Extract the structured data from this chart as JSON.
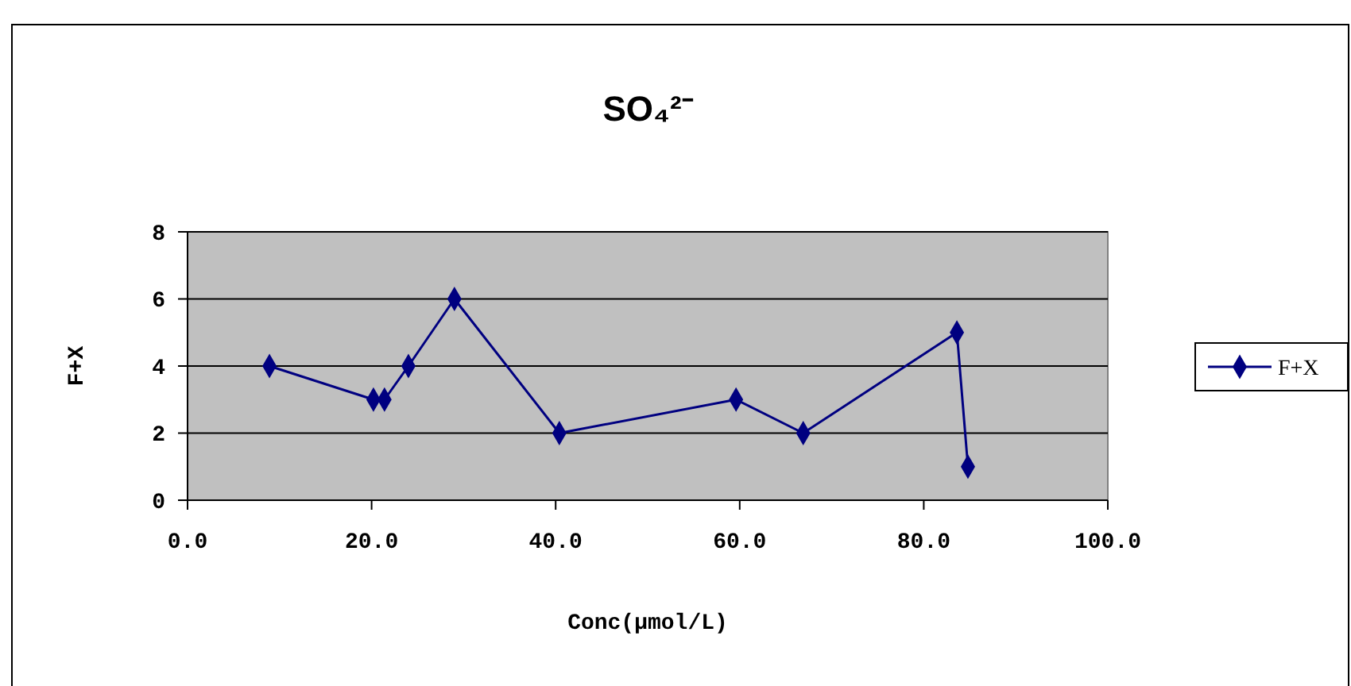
{
  "chart_data": {
    "type": "line",
    "title": "SO₄²⁻",
    "xlabel": "Conc(µmol/L)",
    "ylabel": "F+X",
    "x": [
      8.9,
      20.2,
      21.4,
      24.0,
      29.0,
      40.4,
      59.6,
      66.9,
      83.6,
      84.8
    ],
    "series": [
      {
        "name": "F+X",
        "color": "#000080",
        "values": [
          4,
          3,
          3,
          4,
          6,
          2,
          3,
          2,
          5,
          1
        ]
      }
    ],
    "xlim": [
      0,
      100
    ],
    "xticks": [
      {
        "value": 0,
        "label": "0.0"
      },
      {
        "value": 20,
        "label": "20.0"
      },
      {
        "value": 40,
        "label": "40.0"
      },
      {
        "value": 60,
        "label": "60.0"
      },
      {
        "value": 80,
        "label": "80.0"
      },
      {
        "value": 100,
        "label": "100.0"
      }
    ],
    "ylim": [
      0,
      8
    ],
    "yticks": [
      0,
      2,
      4,
      6,
      8
    ],
    "grid": "y",
    "legend": "right",
    "marker": "diamond",
    "line_style": "solid"
  }
}
